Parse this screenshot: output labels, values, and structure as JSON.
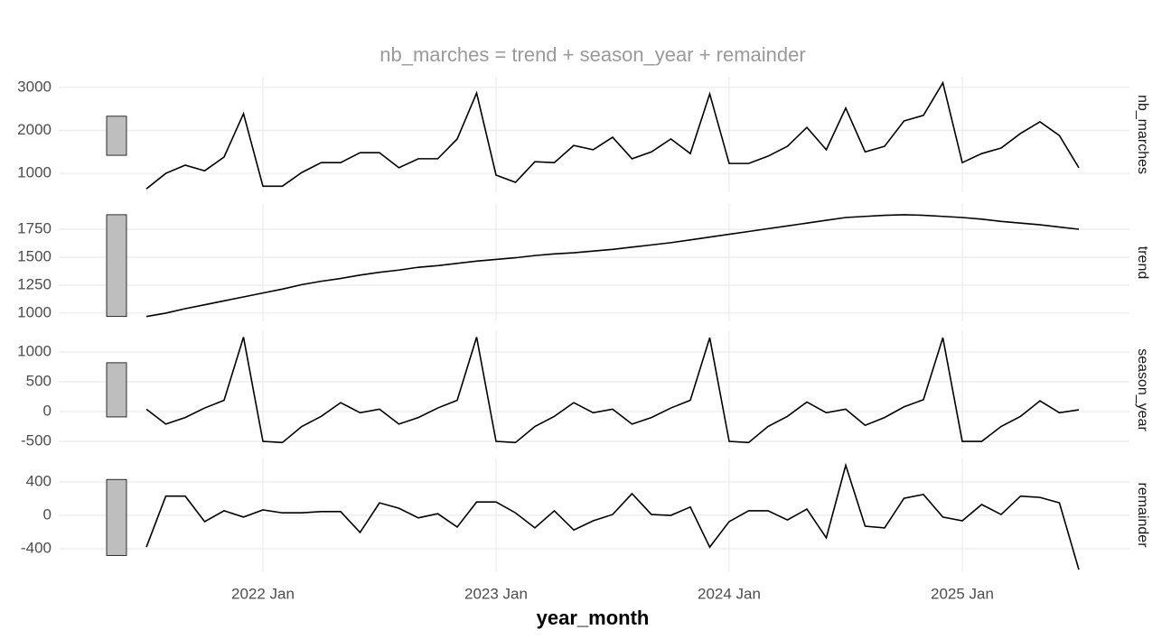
{
  "chart_data": {
    "type": "line",
    "title": "nb_marches = trend + season_year + remainder",
    "x_label": "year_month",
    "color": "#000000",
    "grid": true,
    "x": [
      "2021 Jul",
      "2021 Aug",
      "2021 Sep",
      "2021 Oct",
      "2021 Nov",
      "2021 Dec",
      "2022 Jan",
      "2022 Feb",
      "2022 Mar",
      "2022 Apr",
      "2022 May",
      "2022 Jun",
      "2022 Jul",
      "2022 Aug",
      "2022 Sep",
      "2022 Oct",
      "2022 Nov",
      "2022 Dec",
      "2023 Jan",
      "2023 Feb",
      "2023 Mar",
      "2023 Apr",
      "2023 May",
      "2023 Jun",
      "2023 Jul",
      "2023 Aug",
      "2023 Sep",
      "2023 Oct",
      "2023 Nov",
      "2023 Dec",
      "2024 Jan",
      "2024 Feb",
      "2024 Mar",
      "2024 Apr",
      "2024 May",
      "2024 Jun",
      "2024 Jul",
      "2024 Aug",
      "2024 Sep",
      "2024 Oct",
      "2024 Nov",
      "2024 Dec",
      "2025 Jan",
      "2025 Feb",
      "2025 Mar",
      "2025 Apr",
      "2025 May",
      "2025 Jun",
      "2025 Jul"
    ],
    "xticks": [
      "2022 Jan",
      "2023 Jan",
      "2024 Jan",
      "2025 Jan"
    ],
    "panels": [
      {
        "name": "nb_marches",
        "ylim": [
          560,
          3250
        ],
        "yticks": [
          1000,
          2000,
          3000
        ],
        "values": [
          640,
          1000,
          1190,
          1060,
          1380,
          2390,
          700,
          700,
          1020,
          1250,
          1250,
          1480,
          1480,
          1130,
          1340,
          1340,
          1800,
          2870,
          960,
          790,
          1270,
          1250,
          1650,
          1550,
          1840,
          1340,
          1500,
          1800,
          1460,
          2850,
          1230,
          1230,
          1400,
          1630,
          2070,
          1550,
          2520,
          1500,
          1630,
          2220,
          2350,
          3110,
          1250,
          1460,
          1590,
          1930,
          2200,
          1880,
          1130
        ]
      },
      {
        "name": "trend",
        "ylim": [
          927,
          1976
        ],
        "yticks": [
          1000,
          1250,
          1500,
          1750
        ],
        "values": [
          970,
          1000,
          1040,
          1075,
          1110,
          1145,
          1180,
          1215,
          1255,
          1285,
          1310,
          1340,
          1365,
          1385,
          1410,
          1425,
          1445,
          1465,
          1480,
          1495,
          1515,
          1530,
          1540,
          1555,
          1570,
          1590,
          1610,
          1630,
          1655,
          1680,
          1705,
          1730,
          1755,
          1780,
          1805,
          1830,
          1855,
          1865,
          1875,
          1880,
          1875,
          1865,
          1855,
          1840,
          1820,
          1805,
          1790,
          1770,
          1750
        ]
      },
      {
        "name": "season_year",
        "ylim": [
          -636,
          1364
        ],
        "yticks": [
          -500,
          0,
          500,
          1000
        ],
        "values": [
          40,
          -210,
          -100,
          60,
          190,
          1250,
          -500,
          -520,
          -250,
          -80,
          150,
          -20,
          40,
          -210,
          -100,
          60,
          190,
          1250,
          -500,
          -520,
          -250,
          -80,
          150,
          -20,
          40,
          -210,
          -100,
          60,
          190,
          1240,
          -500,
          -520,
          -250,
          -80,
          160,
          -20,
          40,
          -230,
          -100,
          80,
          200,
          1240,
          -500,
          -500,
          -250,
          -80,
          180,
          -20,
          30
        ]
      },
      {
        "name": "remainder",
        "ylim": [
          -670,
          681
        ],
        "yticks": [
          -400,
          0,
          400
        ],
        "values": [
          -380,
          230,
          230,
          -75,
          55,
          -20,
          65,
          30,
          30,
          45,
          45,
          -205,
          150,
          85,
          -30,
          20,
          -140,
          160,
          160,
          30,
          -150,
          55,
          -175,
          -65,
          10,
          260,
          10,
          0,
          100,
          -380,
          -75,
          55,
          55,
          -55,
          75,
          -270,
          600,
          -130,
          -150,
          205,
          250,
          -20,
          -65,
          130,
          10,
          230,
          215,
          150,
          -650
        ]
      }
    ]
  }
}
